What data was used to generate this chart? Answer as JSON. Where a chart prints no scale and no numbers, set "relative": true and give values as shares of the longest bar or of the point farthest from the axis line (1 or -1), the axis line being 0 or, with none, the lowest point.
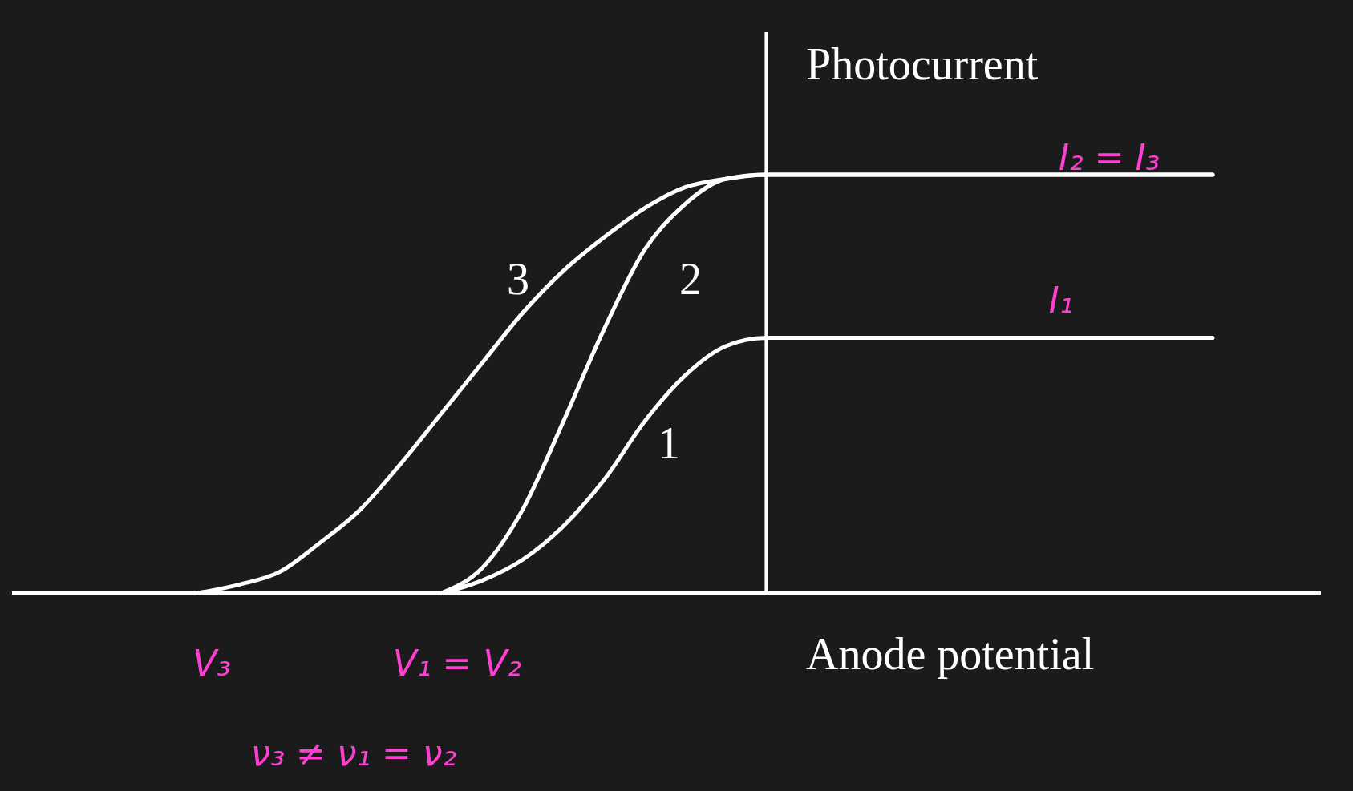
{
  "chart_data": {
    "type": "line",
    "relative": true,
    "xlabel": "Anode potential",
    "ylabel": "Photocurrent",
    "categories": [
      null,
      null,
      null,
      null,
      null,
      null,
      null,
      null,
      null,
      null,
      null,
      null,
      null,
      null,
      null,
      null,
      null,
      null,
      null,
      null,
      null,
      null,
      null,
      null,
      null,
      null
    ],
    "series": [
      {
        "name": "3",
        "color": "#ffffff",
        "values": [
          0,
          0.02,
          0.05,
          0.12,
          0.2,
          0.31,
          0.43,
          0.55,
          0.67,
          0.77,
          0.85,
          0.92,
          0.97,
          0.99,
          1,
          1,
          1,
          1,
          1,
          1,
          1,
          1,
          1,
          1,
          1,
          1
        ]
      },
      {
        "name": "2",
        "color": "#ffffff",
        "values": [
          null,
          null,
          null,
          null,
          null,
          null,
          0,
          0.06,
          0.2,
          0.41,
          0.63,
          0.82,
          0.93,
          0.99,
          1,
          1,
          1,
          1,
          1,
          1,
          1,
          1,
          1,
          1,
          1,
          1
        ]
      },
      {
        "name": "1",
        "color": "#ffffff",
        "values": [
          null,
          null,
          null,
          null,
          null,
          null,
          0,
          0.03,
          0.08,
          0.16,
          0.27,
          0.41,
          0.52,
          0.59,
          0.61,
          0.61,
          0.61,
          0.61,
          0.61,
          0.61,
          0.61,
          0.61,
          0.61,
          0.61,
          0.61,
          0.61
        ]
      }
    ],
    "annotations": [
      "I₂ = I₃",
      "I₁",
      "V₃",
      "V₁ = V₂",
      "ν₃ ≠ ν₁ = ν₂"
    ]
  }
}
